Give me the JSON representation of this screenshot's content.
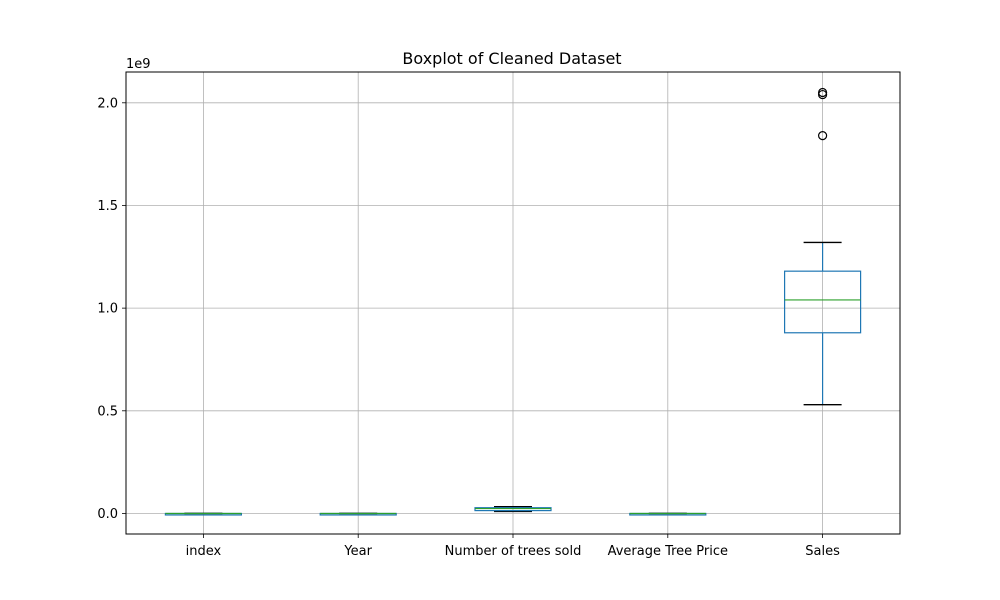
{
  "chart_data": {
    "type": "boxplot",
    "title": "Boxplot of Cleaned Dataset",
    "xlabel": "",
    "ylabel": "",
    "y_offset_label": "1e9",
    "y_scale": 1000000000,
    "ylim": [
      -100000000,
      2150000000
    ],
    "yticks": [
      0,
      500000000,
      1000000000,
      1500000000,
      2000000000
    ],
    "ytick_labels": [
      "0.0",
      "0.5",
      "1.0",
      "1.5",
      "2.0"
    ],
    "grid": true,
    "categories": [
      "index",
      "Year",
      "Number of trees sold",
      "Average Tree Price",
      "Sales"
    ],
    "series": [
      {
        "category": "index",
        "whisker_low": 0,
        "q1": 0,
        "median": 0,
        "q3": 10,
        "whisker_high": 20,
        "outliers": []
      },
      {
        "category": "Year",
        "whisker_low": 2010,
        "q1": 2012,
        "median": 2014,
        "q3": 2016,
        "whisker_high": 2018,
        "outliers": []
      },
      {
        "category": "Number of trees sold",
        "whisker_low": 10000000,
        "q1": 14000000,
        "median": 24000000,
        "q3": 28000000,
        "whisker_high": 33000000,
        "outliers": []
      },
      {
        "category": "Average Tree Price",
        "whisker_low": 36,
        "q1": 40,
        "median": 50,
        "q3": 60,
        "whisker_high": 75,
        "outliers": []
      },
      {
        "category": "Sales",
        "whisker_low": 530000000,
        "q1": 880000000,
        "median": 1040000000,
        "q3": 1180000000,
        "whisker_high": 1320000000,
        "outliers": [
          1840000000,
          2040000000,
          2050000000
        ]
      }
    ],
    "colors": {
      "box": "#1f77b4",
      "median": "#2ca02c",
      "whisker": "#1f77b4",
      "cap": "#000000",
      "grid": "#b0b0b0",
      "axes": "#000000"
    }
  }
}
